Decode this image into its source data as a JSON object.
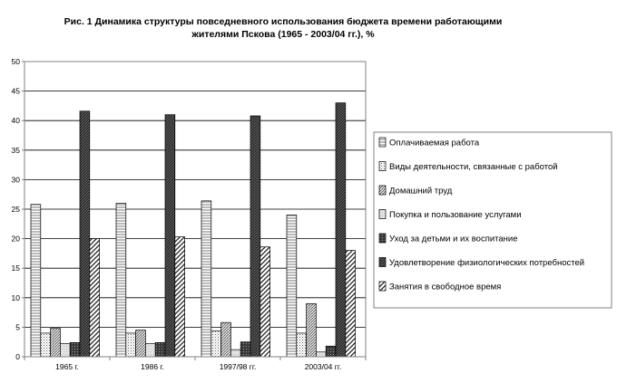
{
  "chart_data": {
    "type": "bar",
    "title_line1": "Рис. 1 Динамика структуры повседневного использования бюджета времени работающими",
    "title_line2": "жителями Пскова (1965 - 2003/04 гг.), %",
    "categories": [
      "1965 г.",
      "1986 г.",
      "1997/98 гг.",
      "2003/04 гг."
    ],
    "ylim": [
      0,
      50
    ],
    "yticks": [
      0,
      5,
      10,
      15,
      20,
      25,
      30,
      35,
      40,
      45,
      50
    ],
    "grid": true,
    "legend_position": "right",
    "series": [
      {
        "name": "Оплачиваемая работа",
        "pattern": "hatch-h",
        "values": [
          25.8,
          26.0,
          26.4,
          24.0
        ]
      },
      {
        "name": "Виды деятельности, связанные с работой",
        "pattern": "dots",
        "values": [
          4.0,
          4.0,
          4.4,
          4.0
        ]
      },
      {
        "name": "Домашний труд",
        "pattern": "hatch-d",
        "values": [
          4.8,
          4.5,
          5.8,
          9.0
        ]
      },
      {
        "name": "Покупка и пользование услугами",
        "pattern": "light",
        "values": [
          2.2,
          2.2,
          1.2,
          0.8
        ]
      },
      {
        "name": "Уход за детьми и их воспитание",
        "pattern": "dark-dots",
        "values": [
          2.4,
          2.4,
          2.5,
          1.8
        ]
      },
      {
        "name": "Удовлетворение физиологических потребностей",
        "pattern": "dark-hatch",
        "values": [
          41.6,
          41.0,
          40.8,
          43.0
        ]
      },
      {
        "name": "Занятия в свободное время",
        "pattern": "wide-diag",
        "values": [
          20.0,
          20.3,
          18.6,
          18.0
        ]
      }
    ]
  }
}
